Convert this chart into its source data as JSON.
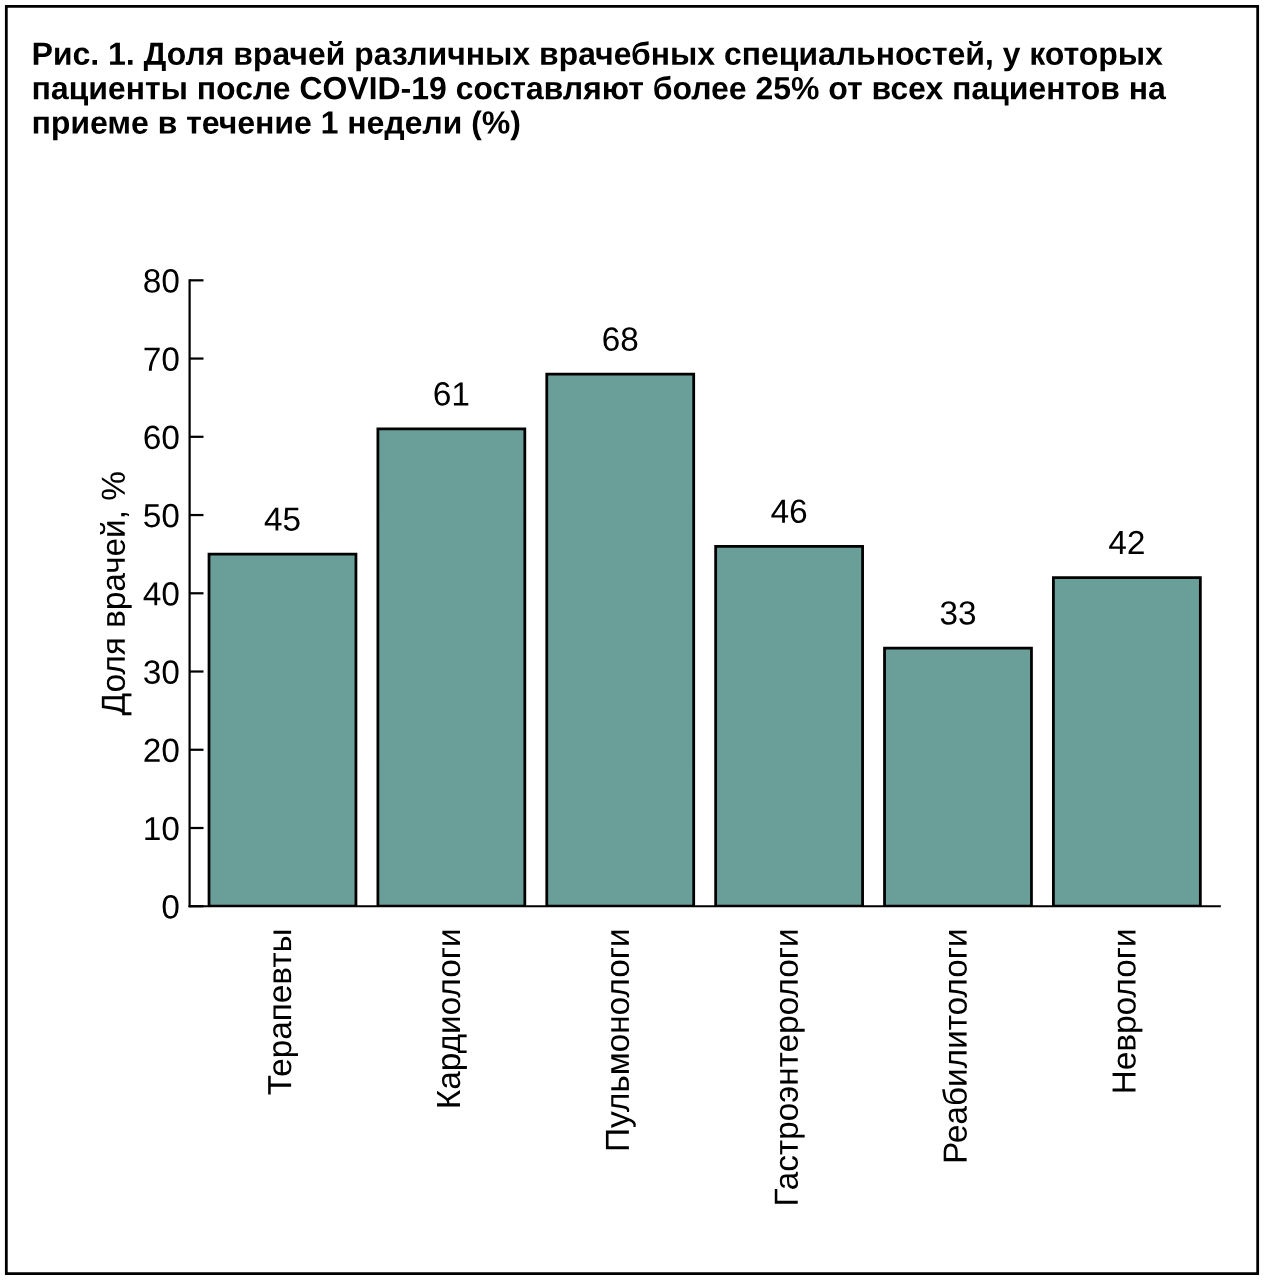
{
  "chart_data": {
    "type": "bar",
    "title": "Рис. 1. Доля врачей различных врачебных специальностей, у которых пациенты после COVID-19 составляют более 25% от всех пациентов на приеме в течение 1 недели (%)",
    "ylabel": "Доля врачей, %",
    "categories": [
      "Терапевты",
      "Кардиологи",
      "Пульмонологи",
      "Гастроэнтерологи",
      "Реабилитологи",
      "Неврологи"
    ],
    "values": [
      45,
      61,
      68,
      46,
      33,
      42
    ],
    "color": "#6a9f99",
    "ylim": [
      0,
      80
    ],
    "yticks": [
      0,
      10,
      20,
      30,
      40,
      50,
      60,
      70,
      80
    ],
    "data_labels": true,
    "grid": false,
    "legend": false
  }
}
